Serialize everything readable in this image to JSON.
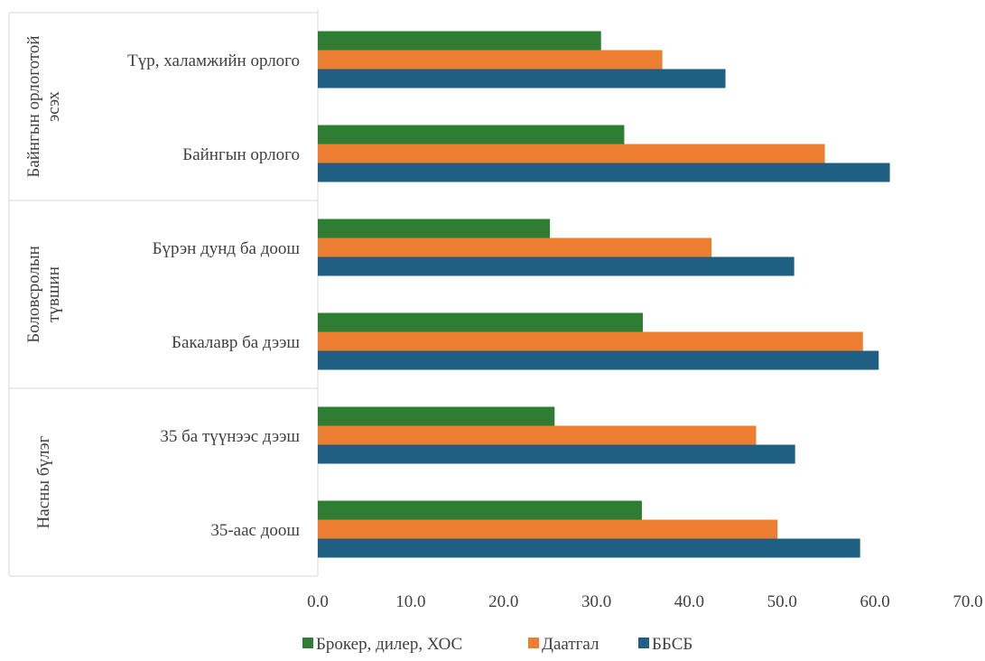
{
  "chart_data": {
    "type": "bar",
    "orientation": "horizontal",
    "groups": [
      {
        "label": "Байнгын орлоготой эсэх",
        "categories": [
          "Түр, халамжийн орлого",
          "Байнгын орлого"
        ]
      },
      {
        "label": "Боловсролын түвшин",
        "categories": [
          "Бүрэн дунд ба доош",
          "Бакалавр ба дээш"
        ]
      },
      {
        "label": "Насны бүлэг",
        "categories": [
          "35 ба түүнээс дээш",
          "35-аас доош"
        ]
      }
    ],
    "categories": [
      "Түр, халамжийн орлого",
      "Байнгын орлого",
      "Бүрэн дунд ба доош",
      "Бакалавр ба дээш",
      "35 ба түүнээс дээш",
      "35-аас доош"
    ],
    "series": [
      {
        "name": "Брокер, дилер, ХОС",
        "color": "#2e7d32",
        "values": [
          30.5,
          33.0,
          25.0,
          35.0,
          25.5,
          34.9
        ]
      },
      {
        "name": "Даатгал",
        "color": "#ed7d31",
        "values": [
          37.1,
          54.6,
          42.4,
          58.7,
          47.2,
          49.5
        ]
      },
      {
        "name": "ББСБ",
        "color": "#1f5f82",
        "values": [
          43.9,
          61.6,
          51.3,
          60.4,
          51.4,
          58.4
        ]
      }
    ],
    "xlim": [
      0,
      70
    ],
    "xticks": [
      "0.0",
      "10.0",
      "20.0",
      "30.0",
      "40.0",
      "50.0",
      "60.0",
      "70.0"
    ],
    "grid": false,
    "legend_position": "bottom"
  }
}
